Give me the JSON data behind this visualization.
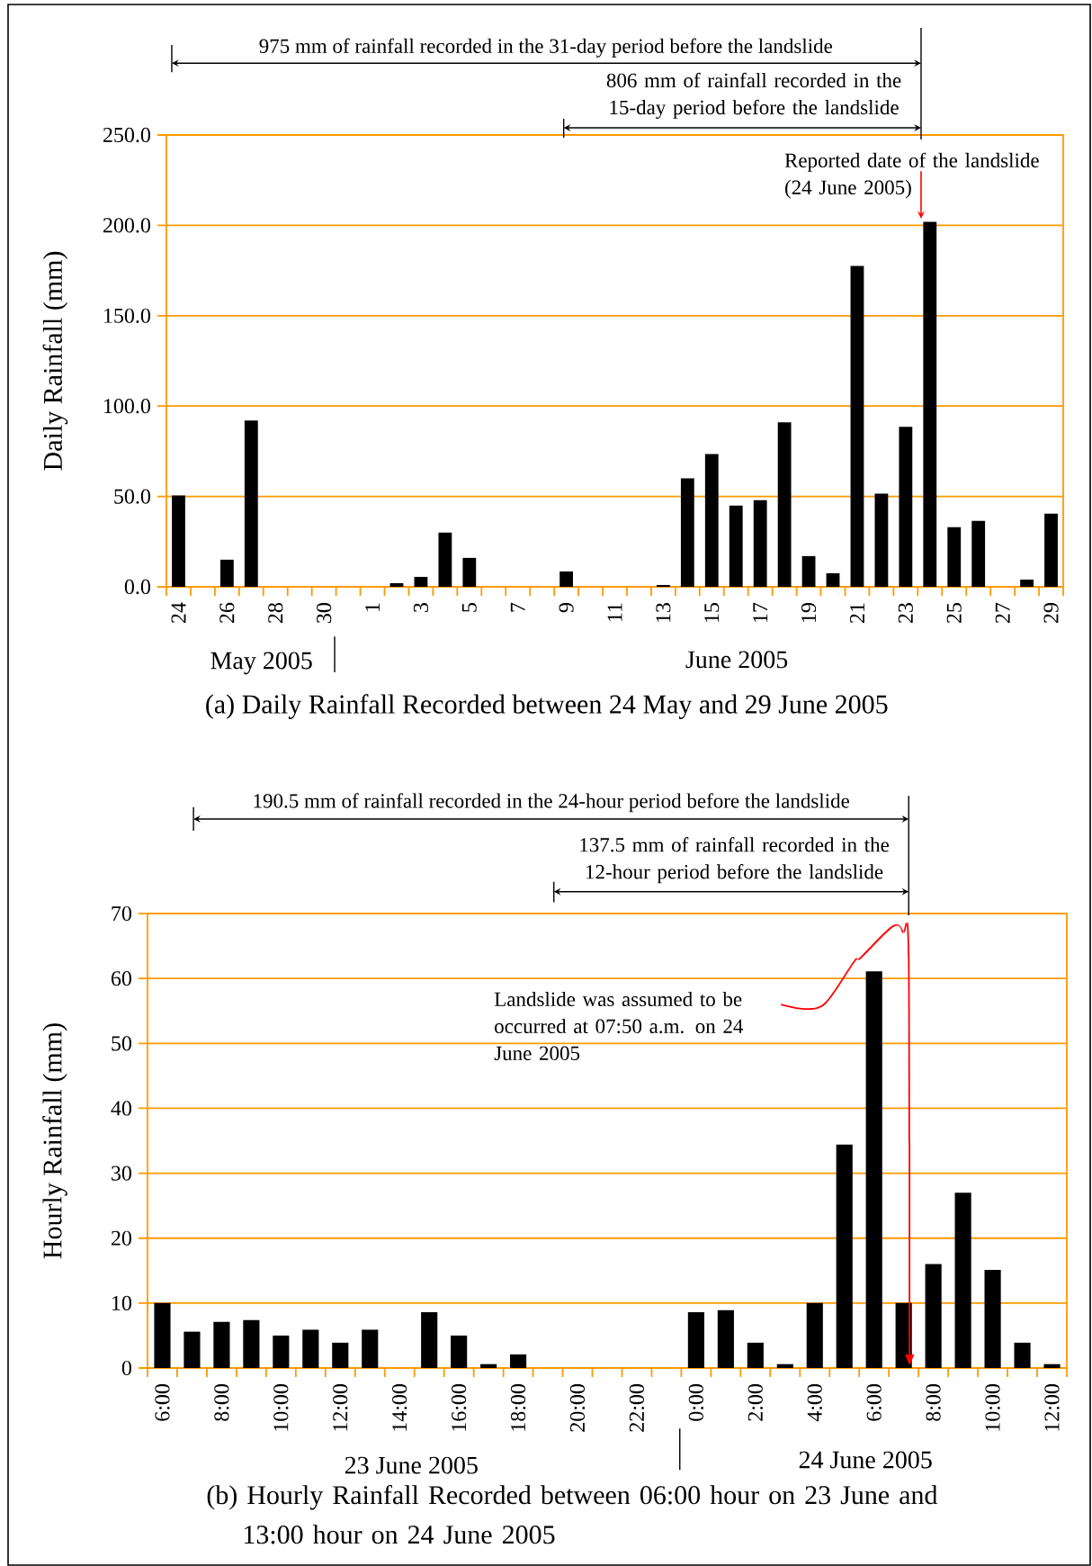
{
  "chart_data": [
    {
      "type": "bar",
      "title": "(a) Daily Rainfall Recorded between 24 May and 29 June 2005",
      "ylabel": "Daily Rainfall (mm)",
      "categories": [
        "24",
        null,
        "26",
        null,
        "28",
        null,
        "30",
        null,
        "1",
        null,
        "3",
        null,
        "5",
        null,
        "7",
        null,
        "9",
        null,
        "11",
        null,
        "13",
        null,
        "15",
        null,
        "17",
        null,
        "19",
        null,
        "21",
        null,
        "23",
        null,
        "25",
        null,
        "27",
        null,
        "29"
      ],
      "values": [
        50.5,
        0,
        15,
        92,
        0,
        0,
        0,
        0,
        0,
        2,
        5.5,
        30,
        16,
        0,
        0,
        0,
        8.5,
        0,
        0,
        0,
        1,
        60,
        73.5,
        45,
        48,
        91,
        17,
        7.5,
        177.5,
        51.5,
        88.5,
        202,
        33,
        36.5,
        0,
        4,
        40.5
      ],
      "color": "#000000",
      "ylim": [
        0,
        250
      ],
      "yticks": [
        {
          "value": 0,
          "label": "0.0"
        },
        {
          "value": 50,
          "label": "50.0"
        },
        {
          "value": 100,
          "label": "100.0"
        },
        {
          "value": 150,
          "label": "150.0"
        },
        {
          "value": 200,
          "label": "200.0"
        },
        {
          "value": 250,
          "label": "250.0"
        }
      ],
      "grid": "y",
      "annotations": [
        "975 mm of rainfall recorded in the 31-day period before the landslide",
        "806 mm of rainfall recorded in the 15-day period before the landslide",
        "Reported date of the landslide (24 June 2005)",
        "May 2005",
        "June 2005"
      ]
    },
    {
      "type": "bar",
      "title": "(b) Hourly Rainfall Recorded between 06:00 hour on 23 June and 13:00 hour on 24 June 2005",
      "ylabel": "Hourly Rainfall (mm)",
      "categories": [
        "6:00",
        null,
        "8:00",
        null,
        "10:00",
        null,
        "12:00",
        null,
        "14:00",
        null,
        "16:00",
        null,
        "18:00",
        null,
        "20:00",
        null,
        "22:00",
        null,
        "0:00",
        null,
        "2:00",
        null,
        "4:00",
        null,
        "6:00",
        null,
        "8:00",
        null,
        "10:00",
        null,
        "12:00"
      ],
      "values": [
        10,
        5.6,
        7.1,
        7.4,
        5,
        5.9,
        3.9,
        5.9,
        0,
        8.6,
        5,
        0.6,
        2.1,
        0,
        0,
        0,
        0,
        0,
        8.6,
        8.9,
        3.9,
        0.6,
        10,
        34.4,
        61.1,
        10,
        16,
        27,
        15.1,
        3.9,
        0.6
      ],
      "color": "#000000",
      "ylim": [
        0,
        70
      ],
      "yticks": [
        0,
        10,
        20,
        30,
        40,
        50,
        60,
        70
      ],
      "grid": "y",
      "annotations": [
        "190.5 mm of rainfall recorded in the 24-hour period before the landslide",
        "137.5 mm of rainfall recorded in the 12-hour period before the landslide",
        "Landslide was assumed to be occurred at 07:50 a.m. on 24 June 2005",
        "23 June 2005",
        "24 June 2005"
      ]
    }
  ]
}
